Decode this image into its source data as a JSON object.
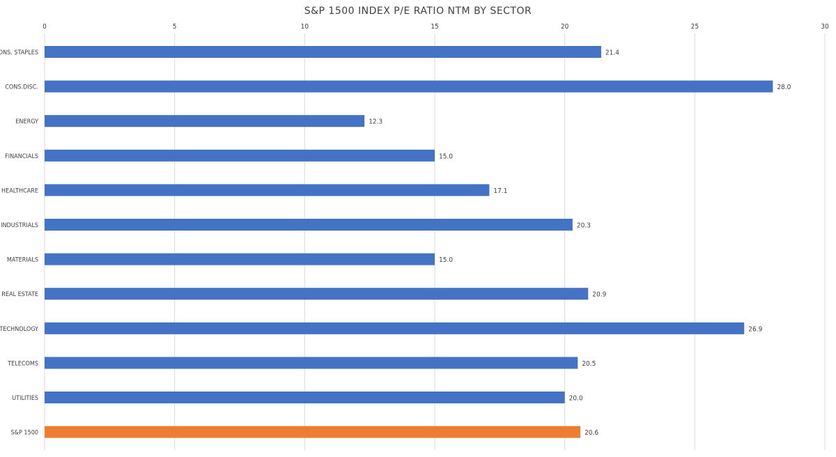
{
  "chart_data": {
    "type": "bar",
    "orientation": "horizontal",
    "title": "S&P 1500 INDEX P/E RATIO NTM BY SECTOR",
    "xlabel": "",
    "ylabel": "",
    "xlim": [
      0,
      30
    ],
    "xticks": [
      0,
      5,
      10,
      15,
      20,
      25,
      30
    ],
    "x_axis_position": "top",
    "grid": true,
    "legend": "none",
    "categories": [
      "CONS. STAPLES",
      "CONS.DISC.",
      "ENERGY",
      "FINANCIALS",
      "HEALTHCARE",
      "INDUSTRIALS",
      "MATERIALS",
      "REAL ESTATE",
      "TECHNOLOGY",
      "TELECOMS",
      "UTILITIES",
      "S&P 1500"
    ],
    "values": [
      21.4,
      28.0,
      12.3,
      15.0,
      17.1,
      20.3,
      15.0,
      20.9,
      26.9,
      20.5,
      20.0,
      20.6
    ],
    "data_labels": [
      "21.4",
      "28.0",
      "12.3",
      "15.0",
      "17.1",
      "20.3",
      "15.0",
      "20.9",
      "26.9",
      "20.5",
      "20.0",
      "20.6"
    ],
    "bar_colors": [
      "#4472C4",
      "#4472C4",
      "#4472C4",
      "#4472C4",
      "#4472C4",
      "#4472C4",
      "#4472C4",
      "#4472C4",
      "#4472C4",
      "#4472C4",
      "#4472C4",
      "#ED7D31"
    ],
    "gridline_color": "#d9d9d9",
    "text_color": "#404040"
  }
}
